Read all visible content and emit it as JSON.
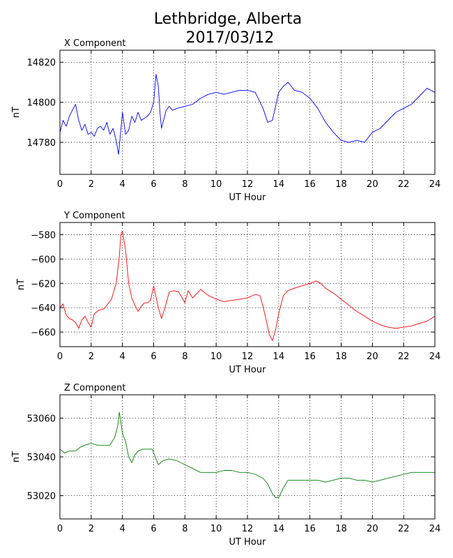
{
  "figure": {
    "title_line1": "Lethbridge, Alberta",
    "title_line2": "2017/03/12"
  },
  "chart_data": [
    {
      "type": "line",
      "title": "X Component",
      "xlabel": "UT Hour",
      "ylabel": "nT",
      "xlim": [
        0,
        24
      ],
      "ylim": [
        14764,
        14826
      ],
      "xticks": [
        0,
        2,
        4,
        6,
        8,
        10,
        12,
        14,
        16,
        18,
        20,
        22,
        24
      ],
      "yticks": [
        14780,
        14800,
        14820
      ],
      "grid": true,
      "color": "#0000ff",
      "x": [
        0,
        0.2,
        0.4,
        0.6,
        0.8,
        1.0,
        1.2,
        1.4,
        1.6,
        1.8,
        2.0,
        2.2,
        2.4,
        2.6,
        2.8,
        3.0,
        3.2,
        3.4,
        3.6,
        3.75,
        3.85,
        4.0,
        4.2,
        4.4,
        4.6,
        4.8,
        5.0,
        5.2,
        5.4,
        5.6,
        5.8,
        6.0,
        6.15,
        6.3,
        6.4,
        6.5,
        6.6,
        6.8,
        7.0,
        7.2,
        7.5,
        8.0,
        8.5,
        9.0,
        9.5,
        10.0,
        10.5,
        11.0,
        11.5,
        12.0,
        12.5,
        13.0,
        13.3,
        13.6,
        13.8,
        14.0,
        14.3,
        14.6,
        15.0,
        15.5,
        16.0,
        16.5,
        17.0,
        17.5,
        18.0,
        18.5,
        19.0,
        19.5,
        20.0,
        20.5,
        21.0,
        21.5,
        22.0,
        22.5,
        23.0,
        23.5,
        24.0
      ],
      "values": [
        14785,
        14791,
        14788,
        14793,
        14796,
        14799,
        14791,
        14786,
        14789,
        14784,
        14785,
        14783,
        14787,
        14788,
        14786,
        14790,
        14784,
        14787,
        14781,
        14774,
        14782,
        14795,
        14784,
        14786,
        14793,
        14790,
        14795,
        14791,
        14792,
        14793,
        14795,
        14800,
        14814,
        14808,
        14795,
        14787,
        14790,
        14796,
        14798,
        14796,
        14797,
        14798,
        14799,
        14802,
        14804,
        14805,
        14804,
        14805,
        14806,
        14806,
        14805,
        14797,
        14790,
        14791,
        14798,
        14805,
        14808,
        14810,
        14806,
        14805,
        14802,
        14797,
        14790,
        14785,
        14781,
        14780,
        14781,
        14780,
        14785,
        14787,
        14791,
        14795,
        14797,
        14799,
        14803,
        14807,
        14805
      ]
    },
    {
      "type": "line",
      "title": "Y Component",
      "xlabel": "UT Hour",
      "ylabel": "nT",
      "xlim": [
        0,
        24
      ],
      "ylim": [
        -672,
        -570
      ],
      "xticks": [
        0,
        2,
        4,
        6,
        8,
        10,
        12,
        14,
        16,
        18,
        20,
        22,
        24
      ],
      "yticks": [
        -580,
        -600,
        -620,
        -640,
        -660
      ],
      "grid": true,
      "color": "#ff0000",
      "x": [
        0,
        0.2,
        0.4,
        0.6,
        0.8,
        1.0,
        1.2,
        1.4,
        1.6,
        1.8,
        2.0,
        2.2,
        2.5,
        2.8,
        3.0,
        3.3,
        3.6,
        3.8,
        3.9,
        4.0,
        4.2,
        4.4,
        4.6,
        4.8,
        5.0,
        5.2,
        5.4,
        5.6,
        5.8,
        6.0,
        6.1,
        6.3,
        6.5,
        6.7,
        7.0,
        7.3,
        7.6,
        8.0,
        8.2,
        8.5,
        9.0,
        9.5,
        10.0,
        10.5,
        11.0,
        11.5,
        12.0,
        12.5,
        12.8,
        13.0,
        13.2,
        13.4,
        13.6,
        13.8,
        14.0,
        14.3,
        14.6,
        15.0,
        15.5,
        16.0,
        16.4,
        16.7,
        17.0,
        17.5,
        18.0,
        18.5,
        19.0,
        19.5,
        20.0,
        20.5,
        21.0,
        21.5,
        22.0,
        22.5,
        23.0,
        23.5,
        24.0
      ],
      "values": [
        -640,
        -637,
        -646,
        -649,
        -650,
        -652,
        -657,
        -650,
        -647,
        -652,
        -656,
        -645,
        -642,
        -641,
        -638,
        -633,
        -620,
        -598,
        -580,
        -577,
        -593,
        -620,
        -632,
        -638,
        -643,
        -639,
        -636,
        -636,
        -634,
        -622,
        -628,
        -640,
        -649,
        -641,
        -627,
        -626,
        -627,
        -636,
        -626,
        -632,
        -625,
        -630,
        -633,
        -635,
        -634,
        -633,
        -632,
        -629,
        -630,
        -639,
        -650,
        -662,
        -667,
        -658,
        -645,
        -630,
        -626,
        -624,
        -622,
        -620,
        -618,
        -620,
        -624,
        -628,
        -633,
        -638,
        -643,
        -647,
        -651,
        -654,
        -656,
        -657,
        -656,
        -655,
        -653,
        -651,
        -647
      ]
    },
    {
      "type": "line",
      "title": "Z Component",
      "xlabel": "UT Hour",
      "ylabel": "nT",
      "xlim": [
        0,
        24
      ],
      "ylim": [
        53008,
        53072
      ],
      "xticks": [
        0,
        2,
        4,
        6,
        8,
        10,
        12,
        14,
        16,
        18,
        20,
        22,
        24
      ],
      "yticks": [
        53020,
        53040,
        53060
      ],
      "grid": true,
      "color": "#008000",
      "x": [
        0,
        0.3,
        0.6,
        1.0,
        1.3,
        1.6,
        2.0,
        2.4,
        2.8,
        3.2,
        3.5,
        3.7,
        3.8,
        3.9,
        4.0,
        4.2,
        4.4,
        4.6,
        4.8,
        5.0,
        5.3,
        5.6,
        5.9,
        6.1,
        6.3,
        6.6,
        7.0,
        7.5,
        8.0,
        8.5,
        9.0,
        9.5,
        10.0,
        10.5,
        11.0,
        11.5,
        12.0,
        12.5,
        13.0,
        13.3,
        13.6,
        13.8,
        14.0,
        14.3,
        14.6,
        15.0,
        15.5,
        16.0,
        16.5,
        17.0,
        17.5,
        18.0,
        18.5,
        19.0,
        19.5,
        20.0,
        20.5,
        21.0,
        21.5,
        22.0,
        22.5,
        23.0,
        23.5,
        24.0
      ],
      "values": [
        53044,
        53042,
        53043,
        53043,
        53045,
        53046,
        53047,
        53046,
        53046,
        53046,
        53050,
        53056,
        53063,
        53058,
        53052,
        53048,
        53040,
        53037,
        53041,
        53043,
        53044,
        53044,
        53044,
        53040,
        53036,
        53038,
        53039,
        53038,
        53036,
        53034,
        53032,
        53032,
        53032,
        53033,
        53033,
        53032,
        53032,
        53031,
        53029,
        53026,
        53021,
        53019,
        53019,
        53024,
        53028,
        53028,
        53028,
        53028,
        53028,
        53027,
        53028,
        53029,
        53029,
        53028,
        53028,
        53027,
        53028,
        53029,
        53030,
        53031,
        53032,
        53032,
        53032,
        53032
      ]
    }
  ]
}
